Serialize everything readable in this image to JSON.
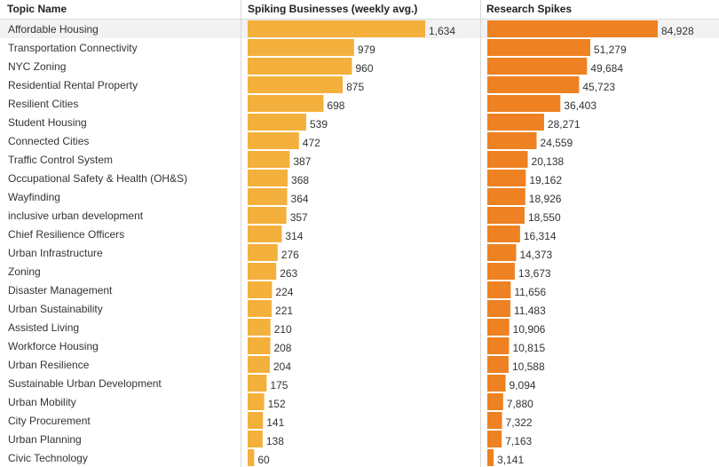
{
  "chart_data": {
    "type": "bar",
    "orientation": "horizontal",
    "title": "",
    "columns": {
      "topic": "Topic Name",
      "spiking": "Spiking Businesses (weekly avg.)",
      "research": "Research Spikes"
    },
    "categories": [
      "Affordable Housing",
      "Transportation Connectivity",
      "NYC Zoning",
      "Residential Rental Property",
      "Resilient Cities",
      "Student Housing",
      "Connected Cities",
      "Traffic Control System",
      "Occupational Safety & Health (OH&S)",
      "Wayfinding",
      "inclusive urban development",
      "Chief Resilience Officers",
      "Urban Infrastructure",
      "Zoning",
      "Disaster Management",
      "Urban Sustainability",
      "Assisted Living",
      "Workforce Housing",
      "Urban Resilience",
      "Sustainable Urban Development",
      "Urban Mobility",
      "City Procurement",
      "Urban Planning",
      "Civic Technology"
    ],
    "series": [
      {
        "name": "Spiking Businesses (weekly avg.)",
        "color": "#f4b03c",
        "values": [
          1634,
          979,
          960,
          875,
          698,
          539,
          472,
          387,
          368,
          364,
          357,
          314,
          276,
          263,
          224,
          221,
          210,
          208,
          204,
          175,
          152,
          141,
          138,
          60
        ],
        "labels": [
          "1,634",
          "979",
          "960",
          "875",
          "698",
          "539",
          "472",
          "387",
          "368",
          "364",
          "357",
          "314",
          "276",
          "263",
          "224",
          "221",
          "210",
          "208",
          "204",
          "175",
          "152",
          "141",
          "138",
          "60"
        ],
        "xlim": [
          0,
          1634
        ]
      },
      {
        "name": "Research Spikes",
        "color": "#ee8121",
        "values": [
          84928,
          51279,
          49684,
          45723,
          36403,
          28271,
          24559,
          20138,
          19162,
          18926,
          18550,
          16314,
          14373,
          13673,
          11656,
          11483,
          10906,
          10815,
          10588,
          9094,
          7880,
          7322,
          7163,
          3141
        ],
        "labels": [
          "84,928",
          "51,279",
          "49,684",
          "45,723",
          "36,403",
          "28,271",
          "24,559",
          "20,138",
          "19,162",
          "18,926",
          "18,550",
          "16,314",
          "14,373",
          "13,673",
          "11,656",
          "11,483",
          "10,906",
          "10,815",
          "10,588",
          "9,094",
          "7,880",
          "7,322",
          "7,163",
          "3,141"
        ],
        "xlim": [
          0,
          84928
        ]
      }
    ],
    "grid": false,
    "legend": "none"
  },
  "colors": {
    "spiking_bar": "#f4b03c",
    "research_bar": "#ee8121",
    "row_highlight": "#f2f2f2",
    "divider": "#d9d9d9"
  }
}
